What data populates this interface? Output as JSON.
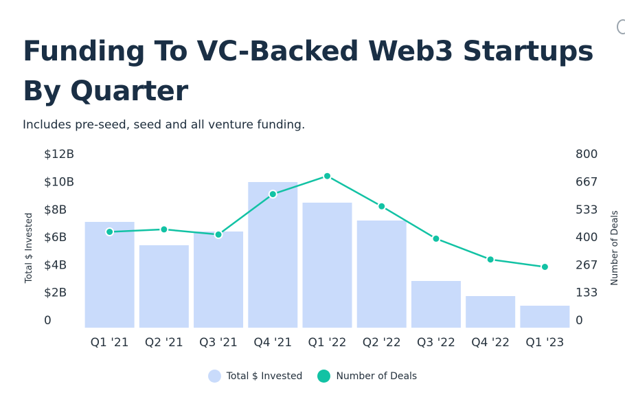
{
  "header": {
    "title": "Funding To VC-Backed Web3 Startups By Quarter",
    "subtitle": "Includes pre-seed, seed and all venture funding."
  },
  "colors": {
    "bar": "#c9dbfb",
    "line": "#12c2a4",
    "axis_text": "#26323d"
  },
  "legend": {
    "bar_label": "Total $ Invested",
    "line_label": "Number of Deals"
  },
  "chart_data": {
    "type": "bar",
    "categories": [
      "Q1 '21",
      "Q2 '21",
      "Q3 '21",
      "Q4 '21",
      "Q1 '22",
      "Q2 '22",
      "Q3 '22",
      "Q4 '22",
      "Q1 '23"
    ],
    "series": [
      {
        "name": "Total $ Invested",
        "type": "bar",
        "axis": "left",
        "values": [
          7.7,
          6.0,
          7.0,
          10.6,
          9.1,
          7.8,
          3.4,
          2.3,
          1.6
        ]
      },
      {
        "name": "Number of Deals",
        "type": "line",
        "axis": "right",
        "values": [
          465,
          477,
          452,
          648,
          736,
          589,
          432,
          331,
          295
        ]
      }
    ],
    "y_left": {
      "label": "Total $ Invested",
      "ticks": [
        "0",
        "$2B",
        "$4B",
        "$6B",
        "$8B",
        "$10B",
        "$12B"
      ],
      "tick_values": [
        0,
        2,
        4,
        6,
        8,
        10,
        12
      ],
      "range": [
        0,
        12
      ]
    },
    "y_right": {
      "label": "Number of Deals",
      "ticks": [
        "0",
        "133",
        "267",
        "400",
        "533",
        "667",
        "800"
      ],
      "tick_values": [
        0,
        133,
        267,
        400,
        533,
        667,
        800
      ],
      "range": [
        0,
        800
      ]
    },
    "grid": false,
    "legend_position": "bottom"
  }
}
